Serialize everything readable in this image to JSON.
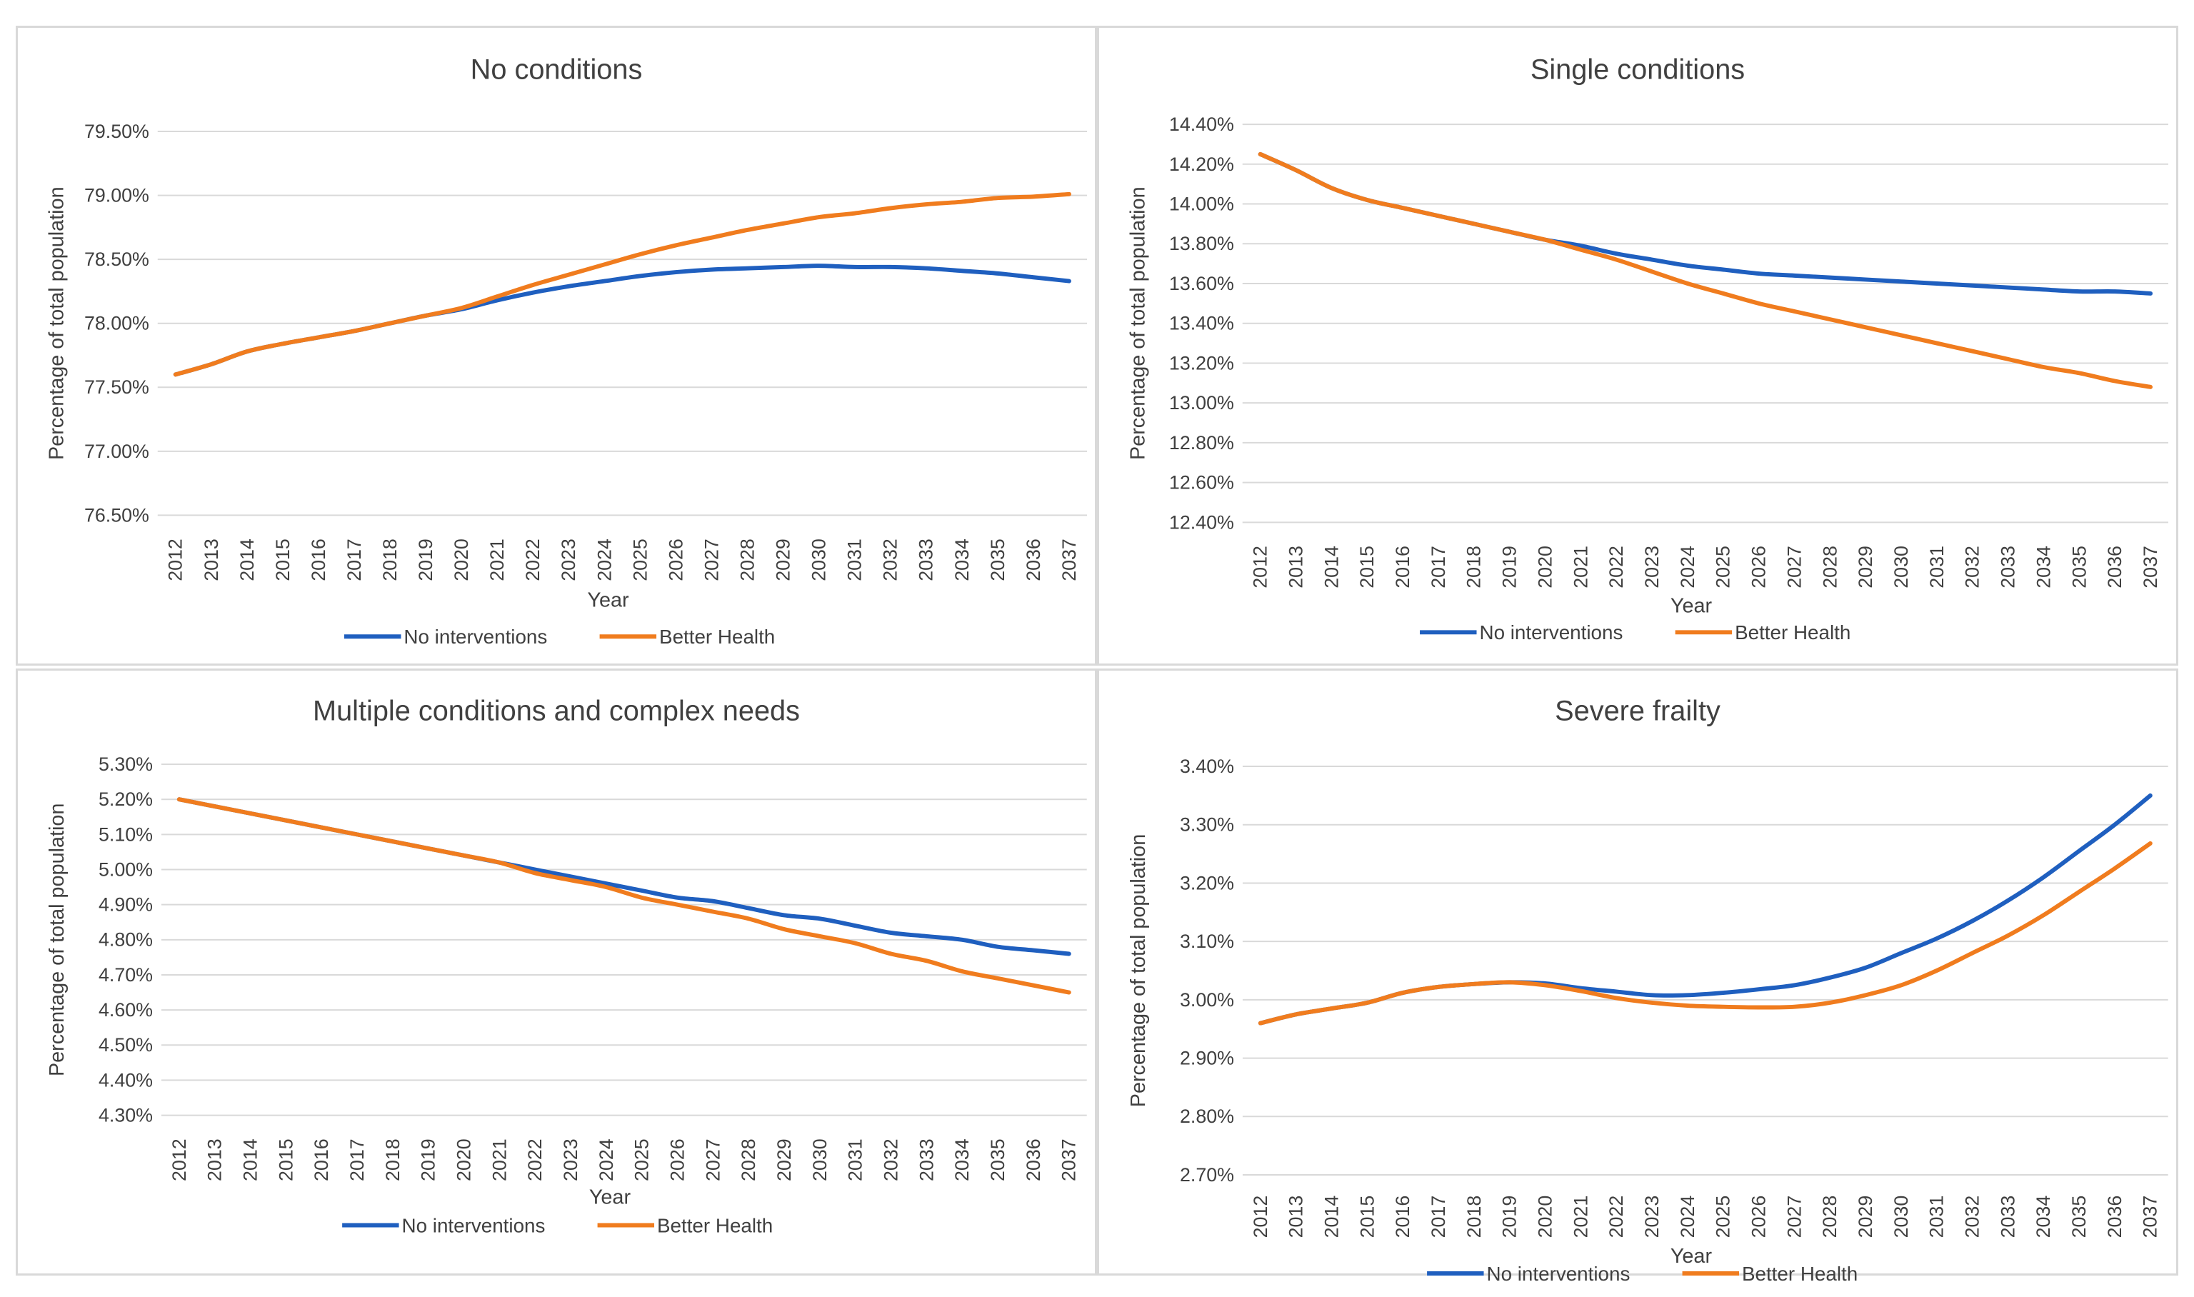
{
  "chart_data": [
    {
      "type": "line",
      "title": "No conditions",
      "xlabel": "Year",
      "ylabel": "Percentage of total population",
      "categories": [
        "2012",
        "2013",
        "2014",
        "2015",
        "2016",
        "2017",
        "2018",
        "2019",
        "2020",
        "2021",
        "2022",
        "2023",
        "2024",
        "2025",
        "2026",
        "2027",
        "2028",
        "2029",
        "2030",
        "2031",
        "2032",
        "2033",
        "2034",
        "2035",
        "2036",
        "2037"
      ],
      "yticks": [
        "76.50%",
        "77.00%",
        "77.50%",
        "78.00%",
        "78.50%",
        "79.00%",
        "79.50%"
      ],
      "ylim": [
        76.5,
        79.5
      ],
      "series": [
        {
          "name": "No interventions",
          "color": "#1f5fbf",
          "values": [
            77.6,
            77.68,
            77.78,
            77.84,
            77.89,
            77.94,
            78.0,
            78.06,
            78.11,
            78.18,
            78.24,
            78.29,
            78.33,
            78.37,
            78.4,
            78.42,
            78.43,
            78.44,
            78.45,
            78.44,
            78.44,
            78.43,
            78.41,
            78.39,
            78.36,
            78.33
          ]
        },
        {
          "name": "Better Health",
          "color": "#f07c1e",
          "values": [
            77.6,
            77.68,
            77.78,
            77.84,
            77.89,
            77.94,
            78.0,
            78.06,
            78.12,
            78.21,
            78.3,
            78.38,
            78.46,
            78.54,
            78.61,
            78.67,
            78.73,
            78.78,
            78.83,
            78.86,
            78.9,
            78.93,
            78.95,
            78.98,
            78.99,
            79.01
          ]
        }
      ],
      "legend": [
        "No interventions",
        "Better Health"
      ]
    },
    {
      "type": "line",
      "title": "Single conditions",
      "xlabel": "Year",
      "ylabel": "Percentage of total population",
      "categories": [
        "2012",
        "2013",
        "2014",
        "2015",
        "2016",
        "2017",
        "2018",
        "2019",
        "2020",
        "2021",
        "2022",
        "2023",
        "2024",
        "2025",
        "2026",
        "2027",
        "2028",
        "2029",
        "2030",
        "2031",
        "2032",
        "2033",
        "2034",
        "2035",
        "2036",
        "2037"
      ],
      "yticks": [
        "12.40%",
        "12.60%",
        "12.80%",
        "13.00%",
        "13.20%",
        "13.40%",
        "13.60%",
        "13.80%",
        "14.00%",
        "14.20%",
        "14.40%"
      ],
      "ylim": [
        12.4,
        14.4
      ],
      "series": [
        {
          "name": "No interventions",
          "color": "#1f5fbf",
          "values": [
            14.25,
            14.17,
            14.08,
            14.02,
            13.98,
            13.94,
            13.9,
            13.86,
            13.82,
            13.79,
            13.75,
            13.72,
            13.69,
            13.67,
            13.65,
            13.64,
            13.63,
            13.62,
            13.61,
            13.6,
            13.59,
            13.58,
            13.57,
            13.56,
            13.56,
            13.55
          ]
        },
        {
          "name": "Better Health",
          "color": "#f07c1e",
          "values": [
            14.25,
            14.17,
            14.08,
            14.02,
            13.98,
            13.94,
            13.9,
            13.86,
            13.82,
            13.77,
            13.72,
            13.66,
            13.6,
            13.55,
            13.5,
            13.46,
            13.42,
            13.38,
            13.34,
            13.3,
            13.26,
            13.22,
            13.18,
            13.15,
            13.11,
            13.08
          ]
        }
      ],
      "legend": [
        "No interventions",
        "Better Health"
      ]
    },
    {
      "type": "line",
      "title": "Multiple conditions and complex needs",
      "xlabel": "Year",
      "ylabel": "Percentage of total population",
      "categories": [
        "2012",
        "2013",
        "2014",
        "2015",
        "2016",
        "2017",
        "2018",
        "2019",
        "2020",
        "2021",
        "2022",
        "2023",
        "2024",
        "2025",
        "2026",
        "2027",
        "2028",
        "2029",
        "2030",
        "2031",
        "2032",
        "2033",
        "2034",
        "2035",
        "2036",
        "2037"
      ],
      "yticks": [
        "4.30%",
        "4.40%",
        "4.50%",
        "4.60%",
        "4.70%",
        "4.80%",
        "4.90%",
        "5.00%",
        "5.10%",
        "5.20%",
        "5.30%"
      ],
      "ylim": [
        4.3,
        5.3
      ],
      "series": [
        {
          "name": "No interventions",
          "color": "#1f5fbf",
          "values": [
            5.2,
            5.18,
            5.16,
            5.14,
            5.12,
            5.1,
            5.08,
            5.06,
            5.04,
            5.02,
            5.0,
            4.98,
            4.96,
            4.94,
            4.92,
            4.91,
            4.89,
            4.87,
            4.86,
            4.84,
            4.82,
            4.81,
            4.8,
            4.78,
            4.77,
            4.76
          ]
        },
        {
          "name": "Better Health",
          "color": "#f07c1e",
          "values": [
            5.2,
            5.18,
            5.16,
            5.14,
            5.12,
            5.1,
            5.08,
            5.06,
            5.04,
            5.02,
            4.99,
            4.97,
            4.95,
            4.92,
            4.9,
            4.88,
            4.86,
            4.83,
            4.81,
            4.79,
            4.76,
            4.74,
            4.71,
            4.69,
            4.67,
            4.65
          ]
        }
      ],
      "legend": [
        "No interventions",
        "Better Health"
      ]
    },
    {
      "type": "line",
      "title": "Severe frailty",
      "xlabel": "Year",
      "ylabel": "Percentage of total population",
      "categories": [
        "2012",
        "2013",
        "2014",
        "2015",
        "2016",
        "2017",
        "2018",
        "2019",
        "2020",
        "2021",
        "2022",
        "2023",
        "2024",
        "2025",
        "2026",
        "2027",
        "2028",
        "2029",
        "2030",
        "2031",
        "2032",
        "2033",
        "2034",
        "2035",
        "2036",
        "2037"
      ],
      "yticks": [
        "2.70%",
        "2.80%",
        "2.90%",
        "3.00%",
        "3.10%",
        "3.20%",
        "3.30%",
        "3.40%"
      ],
      "ylim": [
        2.7,
        3.4
      ],
      "series": [
        {
          "name": "No interventions",
          "color": "#1f5fbf",
          "values": [
            2.96,
            2.975,
            2.985,
            2.995,
            3.012,
            3.022,
            3.027,
            3.03,
            3.028,
            3.02,
            3.014,
            3.008,
            3.008,
            3.012,
            3.018,
            3.025,
            3.038,
            3.055,
            3.08,
            3.105,
            3.135,
            3.17,
            3.21,
            3.255,
            3.3,
            3.35
          ]
        },
        {
          "name": "Better Health",
          "color": "#f07c1e",
          "values": [
            2.96,
            2.975,
            2.985,
            2.995,
            3.012,
            3.022,
            3.027,
            3.03,
            3.025,
            3.015,
            3.003,
            2.995,
            2.99,
            2.988,
            2.987,
            2.988,
            2.995,
            3.008,
            3.025,
            3.05,
            3.08,
            3.11,
            3.145,
            3.185,
            3.225,
            3.268
          ]
        }
      ],
      "legend": [
        "No interventions",
        "Better Health"
      ]
    }
  ]
}
